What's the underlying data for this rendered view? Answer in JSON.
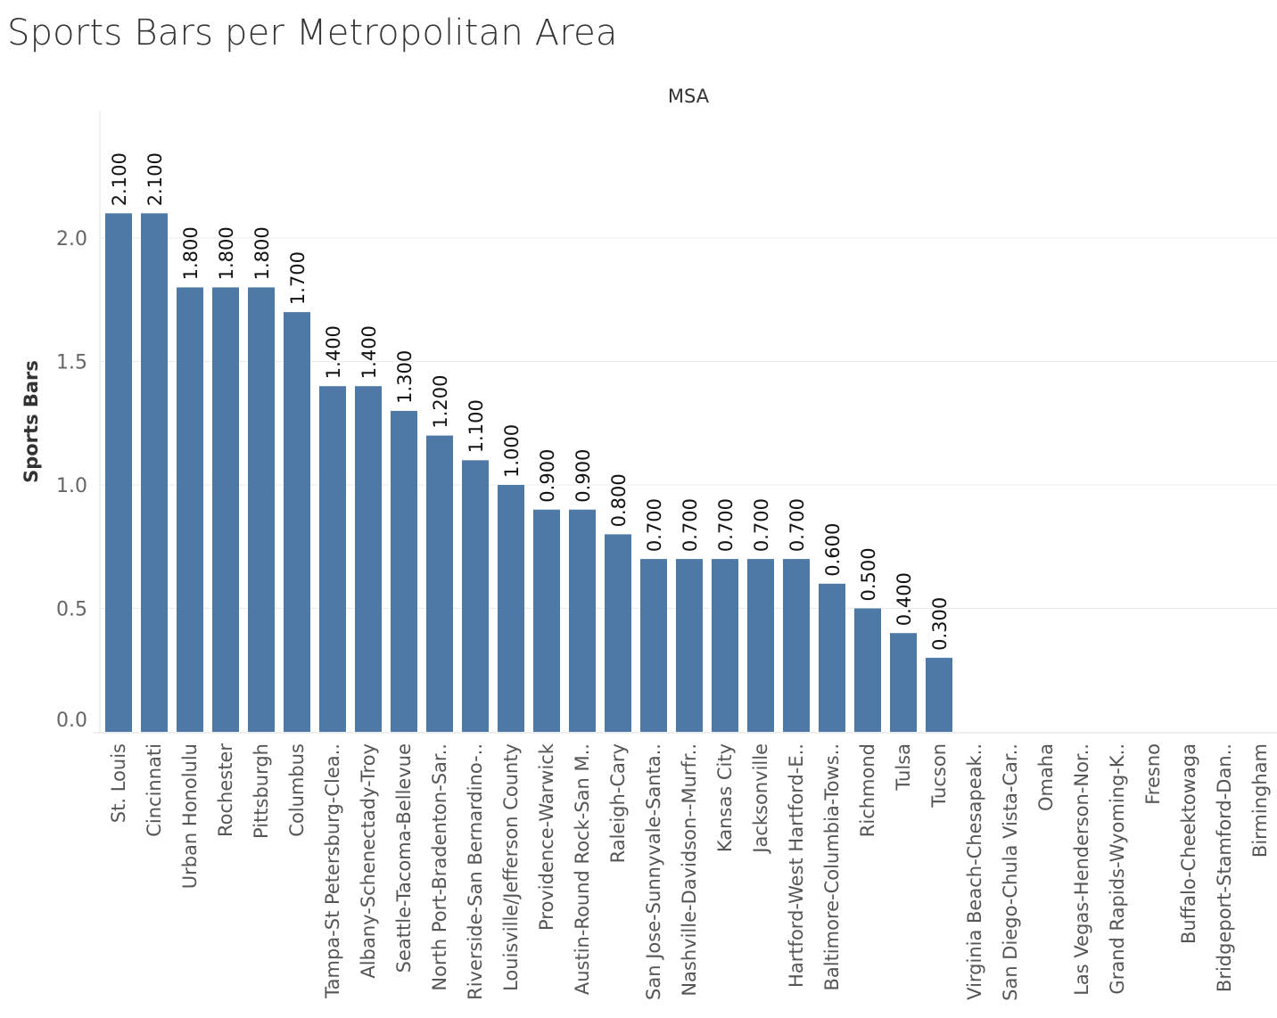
{
  "title": "Sports Bars per Metropolitan Area",
  "colors": {
    "bar": "#4e79a7",
    "grid": "#ebebeb",
    "axis": "#dddddd"
  },
  "chart_data": {
    "type": "bar",
    "title": "Sports Bars per Metropolitan Area",
    "column_header": "MSA",
    "ylabel": "Sports Bars",
    "xlabel": "",
    "ylim": [
      0,
      2.5
    ],
    "yticks": [
      0.0,
      0.5,
      1.0,
      1.5,
      2.0
    ],
    "ytick_labels": [
      "0.0",
      "0.5",
      "1.0",
      "1.5",
      "2.0"
    ],
    "grid": true,
    "categories": [
      "St. Louis",
      "Cincinnati",
      "Urban Honolulu",
      "Rochester",
      "Pittsburgh",
      "Columbus",
      "Tampa-St Petersburg-Clea..",
      "Albany-Schenectady-Troy",
      "Seattle-Tacoma-Bellevue",
      "North Port-Bradenton-Sar..",
      "Riverside-San Bernardino-..",
      "Louisville/Jefferson County",
      "Providence-Warwick",
      "Austin-Round Rock-San M..",
      "Raleigh-Cary",
      "San Jose-Sunnyvale-Santa..",
      "Nashville-Davidson--Murfr..",
      "Kansas City",
      "Jacksonville",
      "Hartford-West Hartford-E..",
      "Baltimore-Columbia-Tows..",
      "Richmond",
      "Tulsa",
      "Tucson",
      "Virginia Beach-Chesapeak..",
      "San Diego-Chula Vista-Car..",
      "Omaha",
      "Las Vegas-Henderson-Nor..",
      "Grand Rapids-Wyoming-K..",
      "Fresno",
      "Buffalo-Cheektowaga",
      "Bridgeport-Stamford-Dan..",
      "Birmingham"
    ],
    "values": [
      2.1,
      2.1,
      1.8,
      1.8,
      1.8,
      1.7,
      1.4,
      1.4,
      1.3,
      1.2,
      1.1,
      1.0,
      0.9,
      0.9,
      0.8,
      0.7,
      0.7,
      0.7,
      0.7,
      0.7,
      0.6,
      0.5,
      0.4,
      0.3,
      null,
      null,
      null,
      null,
      null,
      null,
      null,
      null,
      null
    ],
    "data_labels": [
      "2.100",
      "2.100",
      "1.800",
      "1.800",
      "1.800",
      "1.700",
      "1.400",
      "1.400",
      "1.300",
      "1.200",
      "1.100",
      "1.000",
      "0.900",
      "0.900",
      "0.800",
      "0.700",
      "0.700",
      "0.700",
      "0.700",
      "0.700",
      "0.600",
      "0.500",
      "0.400",
      "0.300",
      "",
      "",
      "",
      "",
      "",
      "",
      "",
      "",
      ""
    ]
  }
}
